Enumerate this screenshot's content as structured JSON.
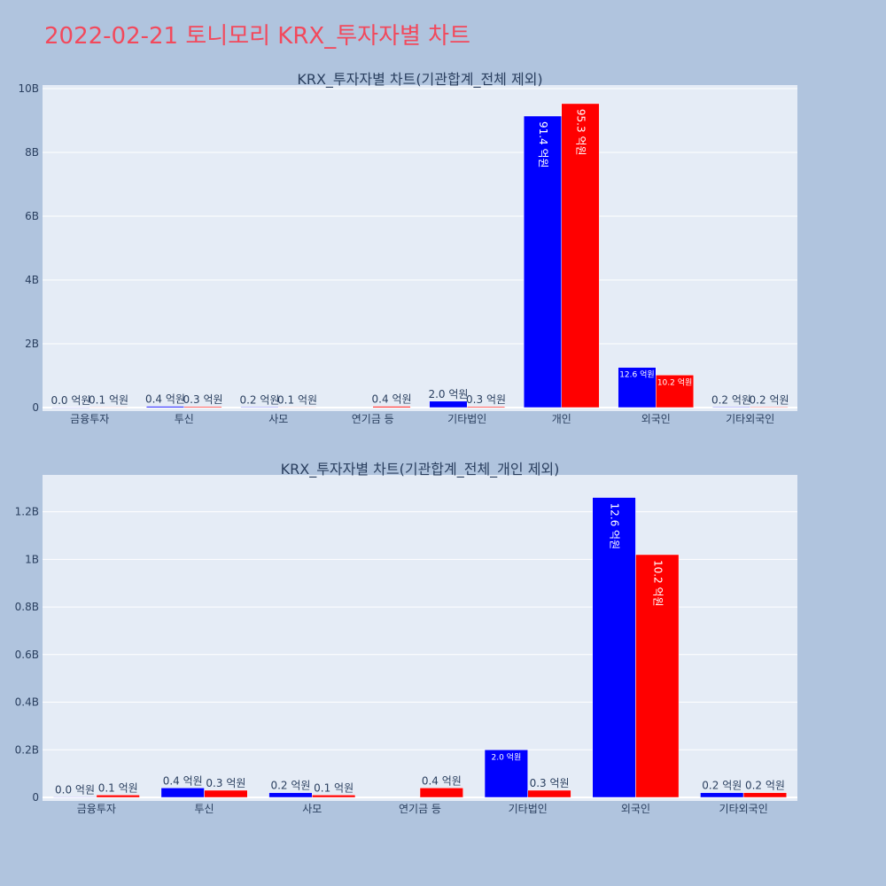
{
  "page": {
    "title": "2022-02-21 토니모리 KRX_투자자별 차트",
    "title_color": "#f2495c",
    "background": "#b0c4de",
    "plot_background": "#e5ecf6"
  },
  "chart_data": [
    {
      "type": "bar",
      "title": "KRX_투자자별 차트(기관합계_전체 제외)",
      "categories": [
        "금융투자",
        "투신",
        "사모",
        "연기금 등",
        "기타법인",
        "개인",
        "외국인",
        "기타외국인"
      ],
      "series": [
        {
          "color": "#0000ff",
          "values": [
            0.002,
            0.04,
            0.02,
            0.0,
            0.2,
            9.14,
            1.26,
            0.02
          ],
          "labels": [
            "0.0 억원",
            "0.4 억원",
            "0.2 억원",
            "",
            "2.0 억원",
            "91.4 억원",
            "12.6 억원",
            "0.2 억원"
          ]
        },
        {
          "color": "#ff0000",
          "values": [
            0.01,
            0.03,
            0.01,
            0.04,
            0.03,
            9.53,
            1.02,
            0.02
          ],
          "labels": [
            "0.1 억원",
            "0.3 억원",
            "0.1 억원",
            "0.4 억원",
            "0.3 억원",
            "95.3 억원",
            "10.2 억원",
            "0.2 억원"
          ]
        }
      ],
      "ylim": [
        0,
        10
      ],
      "yticks": [
        0,
        2,
        4,
        6,
        8,
        10
      ],
      "ytick_labels": [
        "0",
        "2B",
        "4B",
        "6B",
        "8B",
        "10B"
      ],
      "grid": true,
      "legend": "none"
    },
    {
      "type": "bar",
      "title": "KRX_투자자별 차트(기관합계_전체_개인 제외)",
      "categories": [
        "금융투자",
        "투신",
        "사모",
        "연기금 등",
        "기타법인",
        "외국인",
        "기타외국인"
      ],
      "series": [
        {
          "color": "#0000ff",
          "values": [
            0.002,
            0.04,
            0.02,
            0.0,
            0.2,
            1.26,
            0.02
          ],
          "labels": [
            "0.0 억원",
            "0.4 억원",
            "0.2 억원",
            "",
            "2.0 억원",
            "12.6 억원",
            "0.2 억원"
          ]
        },
        {
          "color": "#ff0000",
          "values": [
            0.01,
            0.03,
            0.01,
            0.04,
            0.03,
            1.02,
            0.02
          ],
          "labels": [
            "0.1 억원",
            "0.3 억원",
            "0.1 억원",
            "0.4 억원",
            "0.3 억원",
            "10.2 억원",
            "0.2 억원"
          ]
        }
      ],
      "ylim": [
        0,
        1.34
      ],
      "yticks": [
        0,
        0.2,
        0.4,
        0.6,
        0.8,
        1.0,
        1.2
      ],
      "ytick_labels": [
        "0",
        "0.2B",
        "0.4B",
        "0.6B",
        "0.8B",
        "1B",
        "1.2B"
      ],
      "grid": true,
      "legend": "none"
    }
  ]
}
